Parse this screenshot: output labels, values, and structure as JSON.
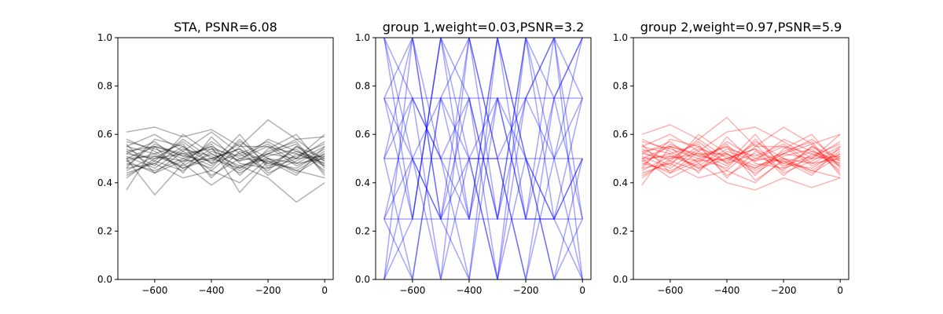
{
  "chart_data": [
    {
      "type": "line",
      "title": "STA, PSNR=6.08",
      "color": "#000000",
      "opacity": 0.3,
      "x": [
        -700,
        -600,
        -500,
        -400,
        -300,
        -200,
        -100,
        0
      ],
      "xticks": [
        -600,
        -400,
        -200,
        0
      ],
      "xlim": [
        -730,
        30
      ],
      "ylim": [
        0,
        1
      ],
      "yticks": [
        0.0,
        0.2,
        0.4,
        0.6,
        0.8,
        1.0
      ],
      "series": [
        {
          "values": [
            0.61,
            0.63,
            0.59,
            0.62,
            0.55,
            0.66,
            0.58,
            0.59
          ]
        },
        {
          "values": [
            0.37,
            0.55,
            0.52,
            0.54,
            0.46,
            0.52,
            0.58,
            0.49
          ]
        },
        {
          "values": [
            0.5,
            0.35,
            0.48,
            0.39,
            0.47,
            0.42,
            0.32,
            0.4
          ]
        },
        {
          "values": [
            0.55,
            0.6,
            0.53,
            0.61,
            0.52,
            0.57,
            0.5,
            0.6
          ]
        },
        {
          "values": [
            0.44,
            0.48,
            0.42,
            0.45,
            0.4,
            0.5,
            0.45,
            0.42
          ]
        },
        {
          "values": [
            0.52,
            0.5,
            0.57,
            0.48,
            0.6,
            0.46,
            0.55,
            0.5
          ]
        },
        {
          "values": [
            0.48,
            0.45,
            0.5,
            0.55,
            0.36,
            0.49,
            0.43,
            0.55
          ]
        },
        {
          "values": [
            0.58,
            0.53,
            0.46,
            0.5,
            0.54,
            0.43,
            0.52,
            0.47
          ]
        },
        {
          "values": [
            0.46,
            0.58,
            0.55,
            0.43,
            0.5,
            0.55,
            0.47,
            0.52
          ]
        },
        {
          "values": [
            0.53,
            0.47,
            0.6,
            0.52,
            0.45,
            0.52,
            0.56,
            0.44
          ]
        },
        {
          "values": [
            0.5,
            0.55,
            0.44,
            0.59,
            0.48,
            0.46,
            0.5,
            0.57
          ]
        },
        {
          "values": [
            0.42,
            0.5,
            0.52,
            0.47,
            0.57,
            0.5,
            0.44,
            0.51
          ]
        },
        {
          "values": [
            0.56,
            0.44,
            0.49,
            0.56,
            0.43,
            0.54,
            0.6,
            0.46
          ]
        },
        {
          "values": [
            0.49,
            0.52,
            0.56,
            0.42,
            0.53,
            0.48,
            0.46,
            0.53
          ]
        },
        {
          "values": [
            0.54,
            0.49,
            0.45,
            0.53,
            0.49,
            0.58,
            0.53,
            0.48
          ]
        },
        {
          "values": [
            0.47,
            0.56,
            0.51,
            0.49,
            0.56,
            0.44,
            0.49,
            0.55
          ]
        },
        {
          "values": [
            0.51,
            0.46,
            0.54,
            0.51,
            0.44,
            0.51,
            0.54,
            0.45
          ]
        },
        {
          "values": [
            0.45,
            0.51,
            0.47,
            0.54,
            0.51,
            0.56,
            0.48,
            0.5
          ]
        },
        {
          "values": [
            0.57,
            0.54,
            0.5,
            0.46,
            0.58,
            0.47,
            0.51,
            0.56
          ]
        },
        {
          "values": [
            0.43,
            0.49,
            0.58,
            0.5,
            0.46,
            0.53,
            0.57,
            0.43
          ]
        },
        {
          "values": [
            0.52,
            0.57,
            0.48,
            0.57,
            0.5,
            0.49,
            0.45,
            0.52
          ]
        },
        {
          "values": [
            0.49,
            0.44,
            0.53,
            0.45,
            0.55,
            0.55,
            0.52,
            0.48
          ]
        },
        {
          "values": [
            0.55,
            0.52,
            0.46,
            0.52,
            0.47,
            0.5,
            0.48,
            0.54
          ]
        },
        {
          "values": [
            0.46,
            0.48,
            0.55,
            0.48,
            0.52,
            0.45,
            0.55,
            0.47
          ]
        },
        {
          "values": [
            0.53,
            0.55,
            0.51,
            0.55,
            0.49,
            0.52,
            0.5,
            0.51
          ]
        },
        {
          "values": [
            0.5,
            0.51,
            0.49,
            0.5,
            0.54,
            0.48,
            0.53,
            0.49
          ]
        }
      ]
    },
    {
      "type": "line",
      "title": "group 1,weight=0.03,PSNR=3.2",
      "color": "#0000ff",
      "opacity": 0.35,
      "x": [
        -700,
        -600,
        -500,
        -400,
        -300,
        -200,
        -100,
        0
      ],
      "xticks": [
        -600,
        -400,
        -200,
        0
      ],
      "xlim": [
        -730,
        30
      ],
      "ylim": [
        0,
        1
      ],
      "yticks": [
        0.0,
        0.2,
        0.4,
        0.6,
        0.8,
        1.0
      ],
      "series": [
        {
          "values": [
            0.75,
            0.75,
            0.75,
            0.75,
            0.75,
            0.75,
            0.75,
            0.75
          ]
        },
        {
          "values": [
            0.5,
            0.5,
            0.5,
            0.5,
            0.5,
            0.5,
            0.5,
            0.5
          ]
        },
        {
          "values": [
            0.25,
            0.25,
            0.25,
            0.25,
            0.25,
            0.25,
            0.25,
            0.25
          ]
        },
        {
          "values": [
            1.0,
            0.25,
            1.0,
            0.5,
            0.0,
            0.75,
            1.0,
            0.25
          ]
        },
        {
          "values": [
            0.75,
            1.0,
            0.25,
            1.0,
            0.5,
            0.0,
            0.75,
            1.0
          ]
        },
        {
          "values": [
            0.5,
            0.0,
            0.75,
            0.25,
            1.0,
            0.5,
            0.0,
            0.5
          ]
        },
        {
          "values": [
            0.25,
            0.75,
            0.5,
            0.75,
            0.25,
            1.0,
            0.5,
            0.0
          ]
        },
        {
          "values": [
            0.0,
            0.5,
            0.0,
            0.5,
            0.75,
            0.25,
            0.25,
            0.75
          ]
        },
        {
          "values": [
            1.0,
            0.5,
            0.25,
            0.75,
            0.0,
            1.0,
            0.25,
            0.5
          ]
        },
        {
          "values": [
            0.0,
            1.0,
            0.5,
            0.0,
            1.0,
            0.25,
            0.75,
            1.0
          ]
        },
        {
          "values": [
            0.75,
            0.25,
            1.0,
            0.25,
            0.75,
            0.5,
            0.0,
            0.25
          ]
        },
        {
          "values": [
            0.5,
            0.75,
            0.0,
            1.0,
            0.25,
            0.75,
            1.0,
            0.0
          ]
        },
        {
          "values": [
            0.25,
            0.0,
            0.75,
            0.5,
            0.5,
            0.0,
            0.5,
            0.75
          ]
        },
        {
          "values": [
            1.0,
            0.75,
            0.5,
            0.25,
            1.0,
            0.5,
            0.25,
            0.5
          ]
        },
        {
          "values": [
            0.0,
            0.25,
            1.0,
            0.75,
            0.25,
            1.0,
            0.75,
            0.25
          ]
        },
        {
          "values": [
            0.5,
            1.0,
            0.25,
            0.0,
            0.75,
            0.25,
            1.0,
            0.75
          ]
        },
        {
          "values": [
            0.75,
            0.5,
            0.75,
            1.0,
            0.5,
            0.75,
            0.5,
            1.0
          ]
        },
        {
          "values": [
            0.25,
            0.5,
            0.25,
            0.5,
            0.0,
            0.5,
            0.25,
            0.0
          ]
        }
      ]
    },
    {
      "type": "line",
      "title": "group 2,weight=0.97,PSNR=5.9",
      "color": "#ff0000",
      "opacity": 0.3,
      "x": [
        -700,
        -600,
        -500,
        -400,
        -300,
        -200,
        -100,
        0
      ],
      "xticks": [
        -600,
        -400,
        -200,
        0
      ],
      "xlim": [
        -730,
        30
      ],
      "ylim": [
        0,
        1
      ],
      "yticks": [
        0.0,
        0.2,
        0.4,
        0.6,
        0.8,
        1.0
      ],
      "series": [
        {
          "values": [
            0.6,
            0.64,
            0.58,
            0.67,
            0.55,
            0.63,
            0.56,
            0.6
          ]
        },
        {
          "values": [
            0.39,
            0.55,
            0.52,
            0.52,
            0.46,
            0.52,
            0.58,
            0.49
          ]
        },
        {
          "values": [
            0.5,
            0.42,
            0.48,
            0.4,
            0.37,
            0.42,
            0.38,
            0.42
          ]
        },
        {
          "values": [
            0.55,
            0.6,
            0.53,
            0.61,
            0.63,
            0.57,
            0.5,
            0.6
          ]
        },
        {
          "values": [
            0.44,
            0.48,
            0.42,
            0.45,
            0.4,
            0.5,
            0.45,
            0.42
          ]
        },
        {
          "values": [
            0.52,
            0.5,
            0.57,
            0.48,
            0.6,
            0.46,
            0.55,
            0.5
          ]
        },
        {
          "values": [
            0.48,
            0.45,
            0.5,
            0.55,
            0.41,
            0.49,
            0.43,
            0.55
          ]
        },
        {
          "values": [
            0.58,
            0.53,
            0.46,
            0.5,
            0.54,
            0.43,
            0.52,
            0.47
          ]
        },
        {
          "values": [
            0.46,
            0.58,
            0.55,
            0.43,
            0.5,
            0.55,
            0.47,
            0.52
          ]
        },
        {
          "values": [
            0.53,
            0.47,
            0.6,
            0.52,
            0.45,
            0.52,
            0.56,
            0.44
          ]
        },
        {
          "values": [
            0.5,
            0.55,
            0.44,
            0.59,
            0.48,
            0.46,
            0.5,
            0.57
          ]
        },
        {
          "values": [
            0.42,
            0.5,
            0.52,
            0.47,
            0.57,
            0.5,
            0.44,
            0.51
          ]
        },
        {
          "values": [
            0.56,
            0.44,
            0.49,
            0.56,
            0.43,
            0.54,
            0.6,
            0.46
          ]
        },
        {
          "values": [
            0.49,
            0.52,
            0.56,
            0.42,
            0.53,
            0.48,
            0.46,
            0.53
          ]
        },
        {
          "values": [
            0.54,
            0.49,
            0.45,
            0.53,
            0.49,
            0.58,
            0.53,
            0.48
          ]
        },
        {
          "values": [
            0.47,
            0.56,
            0.51,
            0.49,
            0.56,
            0.44,
            0.49,
            0.55
          ]
        },
        {
          "values": [
            0.51,
            0.46,
            0.54,
            0.51,
            0.44,
            0.51,
            0.54,
            0.45
          ]
        },
        {
          "values": [
            0.45,
            0.51,
            0.47,
            0.54,
            0.51,
            0.56,
            0.48,
            0.5
          ]
        },
        {
          "values": [
            0.57,
            0.54,
            0.5,
            0.46,
            0.58,
            0.47,
            0.51,
            0.56
          ]
        },
        {
          "values": [
            0.43,
            0.49,
            0.58,
            0.5,
            0.46,
            0.53,
            0.57,
            0.43
          ]
        },
        {
          "values": [
            0.52,
            0.57,
            0.48,
            0.57,
            0.5,
            0.49,
            0.45,
            0.52
          ]
        },
        {
          "values": [
            0.49,
            0.44,
            0.53,
            0.45,
            0.55,
            0.55,
            0.52,
            0.48
          ]
        },
        {
          "values": [
            0.55,
            0.52,
            0.46,
            0.52,
            0.47,
            0.5,
            0.48,
            0.54
          ]
        },
        {
          "values": [
            0.46,
            0.48,
            0.55,
            0.48,
            0.52,
            0.45,
            0.55,
            0.47
          ]
        },
        {
          "values": [
            0.53,
            0.55,
            0.51,
            0.55,
            0.49,
            0.52,
            0.5,
            0.51
          ]
        },
        {
          "values": [
            0.5,
            0.51,
            0.49,
            0.5,
            0.54,
            0.48,
            0.53,
            0.49
          ]
        }
      ]
    }
  ]
}
